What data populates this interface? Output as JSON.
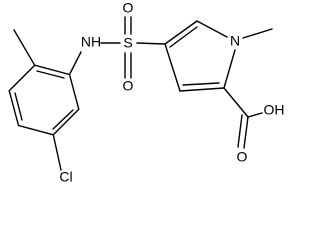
{
  "atoms": {
    "labels": [
      "NH",
      "S",
      "O",
      "O",
      "N",
      "Cl",
      "OH",
      "O"
    ]
  }
}
